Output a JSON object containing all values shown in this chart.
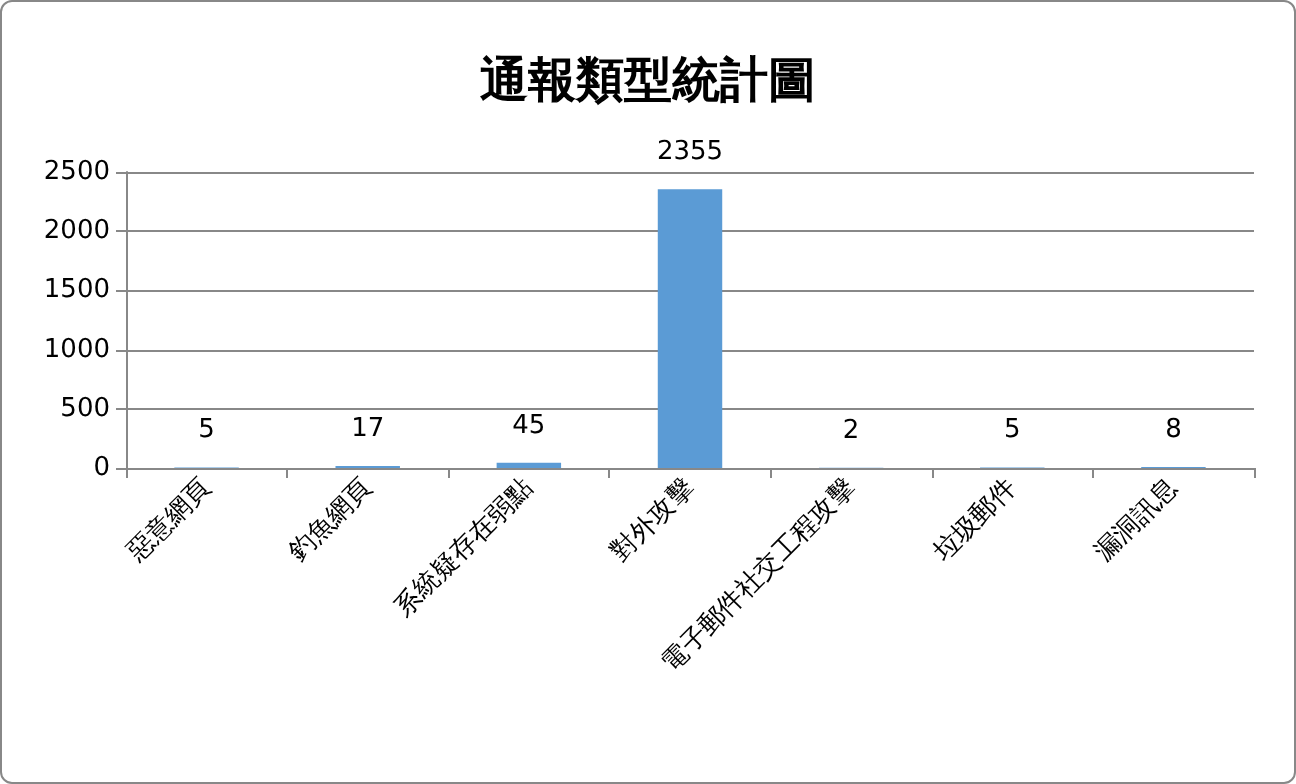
{
  "chart_data": {
    "type": "bar",
    "title": "通報類型統計圖",
    "categories": [
      "惡意網頁",
      "釣魚網頁",
      "系統疑存在弱點",
      "對外攻擊",
      "電子郵件社交工程攻擊",
      "垃圾郵件",
      "漏洞訊息"
    ],
    "values": [
      5,
      17,
      45,
      2355,
      2,
      5,
      8
    ],
    "color": "#5b9bd5",
    "ylim": [
      0,
      2500
    ],
    "yticks": [
      0,
      500,
      1000,
      1500,
      2000,
      2500
    ],
    "grid": "y",
    "data_labels": true
  }
}
